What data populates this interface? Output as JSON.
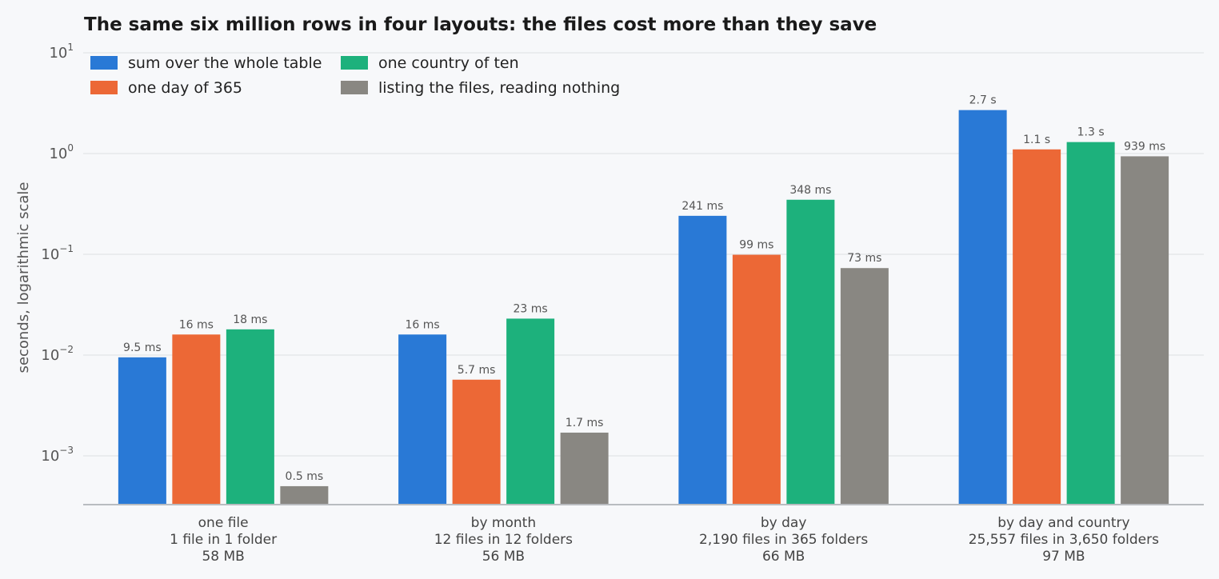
{
  "chart_data": {
    "type": "bar",
    "title": "The same six million rows in four layouts: the files cost more than they save",
    "ylabel": "seconds, logarithmic scale",
    "y_scale": "log",
    "ylim": [
      0.0003,
      10
    ],
    "y_ticks": [
      {
        "value": 10,
        "base": "10",
        "exp": "1"
      },
      {
        "value": 1,
        "base": "10",
        "exp": "0"
      },
      {
        "value": 0.1,
        "base": "10",
        "exp": "−1"
      },
      {
        "value": 0.01,
        "base": "10",
        "exp": "−2"
      },
      {
        "value": 0.001,
        "base": "10",
        "exp": "−3"
      }
    ],
    "grid": true,
    "legend_position": "top-left",
    "categories": [
      [
        "one file",
        "1 file in 1 folder",
        "58 MB"
      ],
      [
        "by month",
        "12 files in 12 folders",
        "56 MB"
      ],
      [
        "by day",
        "2,190 files in 365 folders",
        "66 MB"
      ],
      [
        "by day and country",
        "25,557 files in 3,650 folders",
        "97 MB"
      ]
    ],
    "series": [
      {
        "name": "sum over the whole table",
        "color": "#2979d6",
        "values": [
          0.0095,
          0.016,
          0.241,
          2.7
        ],
        "labels": [
          "9.5 ms",
          "16 ms",
          "241 ms",
          "2.7 s"
        ]
      },
      {
        "name": "one day of 365",
        "color": "#ec6836",
        "values": [
          0.016,
          0.0057,
          0.099,
          1.1
        ],
        "labels": [
          "16 ms",
          "5.7 ms",
          "99 ms",
          "1.1 s"
        ]
      },
      {
        "name": "one country of ten",
        "color": "#1db17c",
        "values": [
          0.018,
          0.023,
          0.348,
          1.3
        ],
        "labels": [
          "18 ms",
          "23 ms",
          "348 ms",
          "1.3 s"
        ]
      },
      {
        "name": "listing the files, reading nothing",
        "color": "#898782",
        "values": [
          0.0005,
          0.0017,
          0.073,
          0.939
        ],
        "labels": [
          "0.5 ms",
          "1.7 ms",
          "73 ms",
          "939 ms"
        ]
      }
    ]
  }
}
